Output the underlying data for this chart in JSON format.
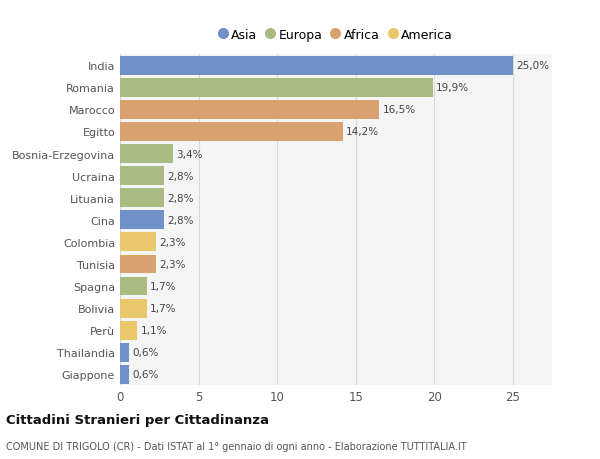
{
  "countries": [
    "India",
    "Romania",
    "Marocco",
    "Egitto",
    "Bosnia-Erzegovina",
    "Ucraina",
    "Lituania",
    "Cina",
    "Colombia",
    "Tunisia",
    "Spagna",
    "Bolivia",
    "Perù",
    "Thailandia",
    "Giappone"
  ],
  "values": [
    25.0,
    19.9,
    16.5,
    14.2,
    3.4,
    2.8,
    2.8,
    2.8,
    2.3,
    2.3,
    1.7,
    1.7,
    1.1,
    0.6,
    0.6
  ],
  "labels": [
    "25,0%",
    "19,9%",
    "16,5%",
    "14,2%",
    "3,4%",
    "2,8%",
    "2,8%",
    "2,8%",
    "2,3%",
    "2,3%",
    "1,7%",
    "1,7%",
    "1,1%",
    "0,6%",
    "0,6%"
  ],
  "colors": [
    "#7090c8",
    "#a8bc82",
    "#d9a070",
    "#d9a070",
    "#a8bc82",
    "#a8bc82",
    "#a8bc82",
    "#7090c8",
    "#e8c86a",
    "#d9a070",
    "#a8bc82",
    "#e8c86a",
    "#e8c86a",
    "#7090c8",
    "#7090c8"
  ],
  "legend_labels": [
    "Asia",
    "Europa",
    "Africa",
    "America"
  ],
  "legend_colors": [
    "#7090c8",
    "#a8bc82",
    "#d9a070",
    "#e8c86a"
  ],
  "title": "Cittadini Stranieri per Cittadinanza",
  "subtitle": "COMUNE DI TRIGOLO (CR) - Dati ISTAT al 1° gennaio di ogni anno - Elaborazione TUTTITALIA.IT",
  "xlim": [
    0,
    27.5
  ],
  "xticks": [
    0,
    5,
    10,
    15,
    20,
    25
  ],
  "bg_color": "#ffffff",
  "plot_bg_color": "#f5f5f5",
  "grid_color": "#d8d8d8"
}
